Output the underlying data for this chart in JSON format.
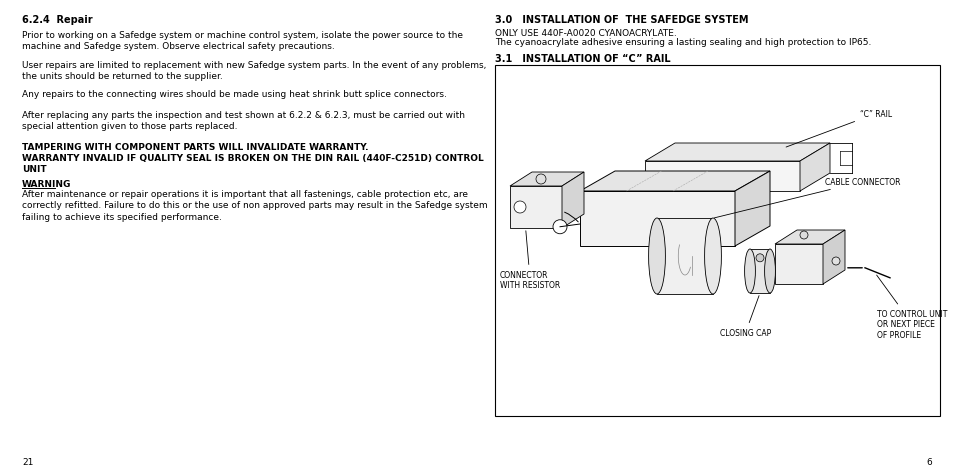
{
  "background_color": "#ffffff",
  "left_col": {
    "section_title": "6.2.4  Repair",
    "paragraphs": [
      "Prior to working on a Safedge system or machine control system, isolate the power source to the\nmachine and Safedge system. Observe electrical safety precautions.",
      "User repairs are limited to replacement with new Safedge system parts. In the event of any problems,\nthe units should be returned to the supplier.",
      "Any repairs to the connecting wires should be made using heat shrink butt splice connectors.",
      "After replacing any parts the inspection and test shown at 6.2.2 & 6.2.3, must be carried out with\nspecial attention given to those parts replaced."
    ],
    "bold_text": "TAMPERING WITH COMPONENT PARTS WILL INVALIDATE WARRANTY.\nWARRANTY INVALID IF QUALITY SEAL IS BROKEN ON THE DIN RAIL (440F-C251D) CONTROL\nUNIT",
    "warning_title": "WARNING",
    "warning_text": "After maintenance or repair operations it is important that all fastenings, cable protection etc, are\ncorrectly refitted. Failure to do this or the use of non approved parts may result in the Safedge system\nfailing to achieve its specified performance.",
    "page_num": "21"
  },
  "right_col": {
    "section_title": "3.0   INSTALLATION OF  THE SAFEDGE SYSTEM",
    "para1": "ONLY USE 440F-A0020 CYANOACRYLATE.",
    "para2": "The cyanoacrylate adhesive ensuring a lasting sealing and high protection to IP65.",
    "subsection_title": "3.1   INSTALLATION OF “C” RAIL",
    "diagram_labels": {
      "c_rail": "“C” RAIL",
      "cable_connector": "CABLE CONNECTOR",
      "connector_with_resistor": "CONNECTOR\nWITH RESISTOR",
      "closing_cap": "CLOSING CAP",
      "to_control_unit": "TO CONTROL UNIT\nOR NEXT PIECE\nOF PROFILE"
    },
    "page_num": "6"
  },
  "font_size_body": 6.5,
  "font_size_section": 7.0,
  "font_size_page": 6.5,
  "font_size_label": 5.5
}
